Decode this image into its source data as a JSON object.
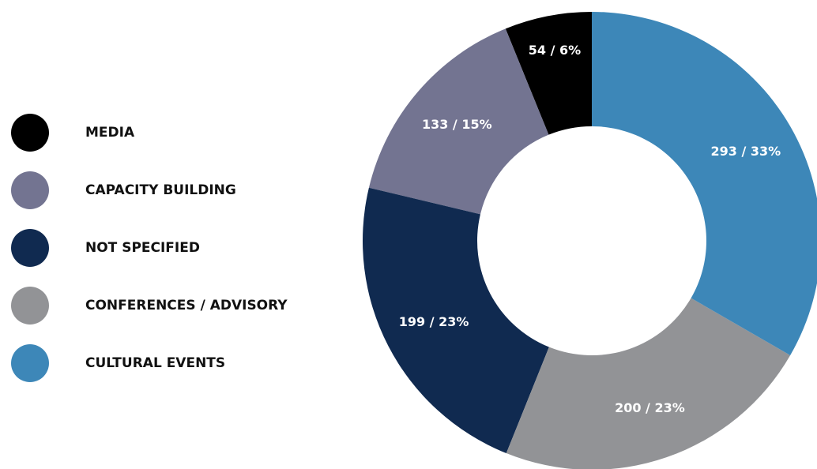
{
  "chart_data": {
    "type": "donut",
    "categories": [
      "MEDIA",
      "CAPACITY BUILDING",
      "NOT SPECIFIED",
      "CONFERENCES / ADVISORY",
      "CULTURAL EVENTS"
    ],
    "values": [
      54,
      133,
      199,
      200,
      293
    ],
    "value_labels": [
      "54 / 6%",
      "133 / 15%",
      "199 / 23%",
      "200 / 23%",
      "293 / 33%"
    ],
    "colors": [
      "#000000",
      "#737491",
      "#102a50",
      "#929396",
      "#3d87b8"
    ],
    "legend": "left"
  }
}
